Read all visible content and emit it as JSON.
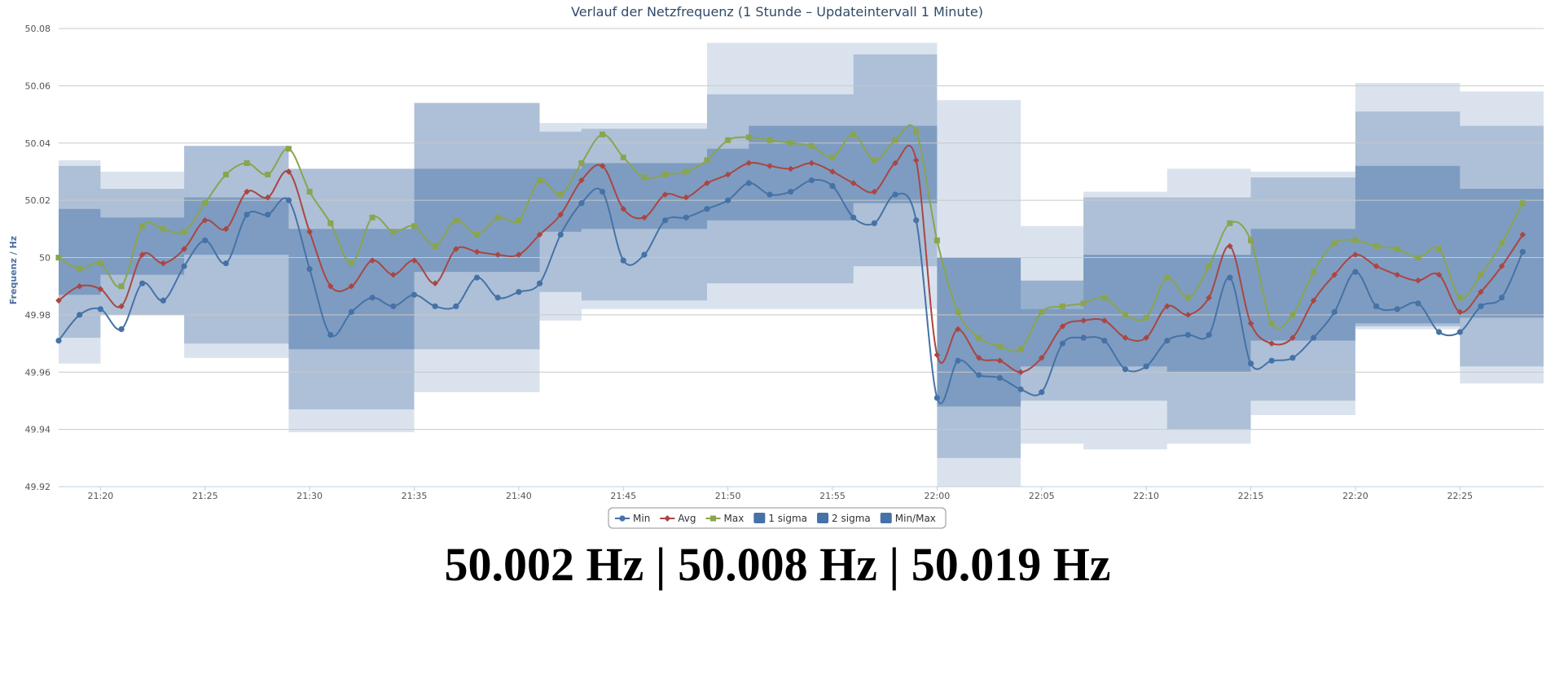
{
  "readout": {
    "text": "50.002 Hz | 50.008 Hz | 50.019 Hz"
  },
  "chart_data": {
    "type": "line",
    "title": "Verlauf der Netzfrequenz (1 Stunde – Updateintervall 1 Minute)",
    "ylabel": "Frequenz / Hz",
    "xlabel": "",
    "ylim": [
      49.92,
      50.08
    ],
    "xlim": [
      "21:18",
      "22:29"
    ],
    "yticks": [
      "50.08",
      "50.06",
      "50.04",
      "50.02",
      "50",
      "49.98",
      "49.96",
      "49.94",
      "49.92"
    ],
    "xticks": [
      "21:20",
      "21:25",
      "21:30",
      "21:35",
      "21:40",
      "21:45",
      "21:50",
      "21:55",
      "22:00",
      "22:05",
      "22:10",
      "22:15",
      "22:20",
      "22:25"
    ],
    "grid": true,
    "legend_position": "bottom-center",
    "x_start": "21:18",
    "x_step_minutes": 1,
    "series": [
      {
        "name": "Min",
        "color": "#4572a7",
        "marker": "circle",
        "values": [
          49.971,
          49.98,
          49.982,
          49.975,
          49.991,
          49.985,
          49.997,
          50.006,
          49.998,
          50.015,
          50.015,
          50.02,
          49.996,
          49.973,
          49.981,
          49.986,
          49.983,
          49.987,
          49.983,
          49.983,
          49.993,
          49.986,
          49.988,
          49.991,
          50.008,
          50.019,
          50.023,
          49.999,
          50.001,
          50.013,
          50.014,
          50.017,
          50.02,
          50.026,
          50.022,
          50.023,
          50.027,
          50.025,
          50.014,
          50.012,
          50.022,
          50.013,
          49.951,
          49.964,
          49.959,
          49.958,
          49.954,
          49.953,
          49.97,
          49.972,
          49.971,
          49.961,
          49.962,
          49.971,
          49.973,
          49.973,
          49.993,
          49.963,
          49.964,
          49.965,
          49.972,
          49.981,
          49.995,
          49.983,
          49.982,
          49.984,
          49.974,
          49.974,
          49.983,
          49.986,
          50.002
        ]
      },
      {
        "name": "Avg",
        "color": "#aa4643",
        "marker": "diamond",
        "values": [
          49.985,
          49.99,
          49.989,
          49.983,
          50.001,
          49.998,
          50.003,
          50.013,
          50.01,
          50.023,
          50.021,
          50.03,
          50.009,
          49.99,
          49.99,
          49.999,
          49.994,
          49.999,
          49.991,
          50.003,
          50.002,
          50.001,
          50.001,
          50.008,
          50.015,
          50.027,
          50.032,
          50.017,
          50.014,
          50.022,
          50.021,
          50.026,
          50.029,
          50.033,
          50.032,
          50.031,
          50.033,
          50.03,
          50.026,
          50.023,
          50.033,
          50.034,
          49.966,
          49.975,
          49.965,
          49.964,
          49.96,
          49.965,
          49.976,
          49.978,
          49.978,
          49.972,
          49.972,
          49.983,
          49.98,
          49.986,
          50.004,
          49.977,
          49.97,
          49.972,
          49.985,
          49.994,
          50.001,
          49.997,
          49.994,
          49.992,
          49.994,
          49.981,
          49.988,
          49.997,
          50.008
        ]
      },
      {
        "name": "Max",
        "color": "#89a54e",
        "marker": "square",
        "values": [
          50.0,
          49.996,
          49.998,
          49.99,
          50.011,
          50.01,
          50.009,
          50.019,
          50.029,
          50.033,
          50.029,
          50.038,
          50.023,
          50.012,
          49.998,
          50.014,
          50.009,
          50.011,
          50.004,
          50.013,
          50.008,
          50.014,
          50.013,
          50.027,
          50.022,
          50.033,
          50.043,
          50.035,
          50.028,
          50.029,
          50.03,
          50.034,
          50.041,
          50.042,
          50.041,
          50.04,
          50.039,
          50.035,
          50.043,
          50.034,
          50.041,
          50.044,
          50.006,
          49.981,
          49.972,
          49.969,
          49.968,
          49.981,
          49.983,
          49.984,
          49.986,
          49.98,
          49.979,
          49.993,
          49.986,
          49.997,
          50.012,
          50.006,
          49.977,
          49.98,
          49.995,
          50.005,
          50.006,
          50.004,
          50.003,
          50.0,
          50.003,
          49.986,
          49.994,
          50.005,
          50.019
        ]
      },
      {
        "name": "1 sigma",
        "color": "#4572a7",
        "type": "band",
        "segments": [
          {
            "from": "21:18",
            "to": "21:20",
            "low": 49.987,
            "high": 50.017
          },
          {
            "from": "21:20",
            "to": "21:24",
            "low": 49.994,
            "high": 50.014
          },
          {
            "from": "21:24",
            "to": "21:29",
            "low": 50.001,
            "high": 50.021
          },
          {
            "from": "21:29",
            "to": "21:35",
            "low": 49.968,
            "high": 50.01
          },
          {
            "from": "21:35",
            "to": "21:41",
            "low": 49.995,
            "high": 50.031
          },
          {
            "from": "21:41",
            "to": "21:43",
            "low": 50.009,
            "high": 50.031
          },
          {
            "from": "21:43",
            "to": "21:49",
            "low": 50.01,
            "high": 50.033
          },
          {
            "from": "21:49",
            "to": "21:51",
            "low": 50.013,
            "high": 50.038
          },
          {
            "from": "21:51",
            "to": "21:56",
            "low": 50.013,
            "high": 50.046
          },
          {
            "from": "21:56",
            "to": "22:00",
            "low": 50.019,
            "high": 50.046
          },
          {
            "from": "22:00",
            "to": "22:04",
            "low": 49.948,
            "high": 50.0
          },
          {
            "from": "22:04",
            "to": "22:07",
            "low": 49.962,
            "high": 49.992
          },
          {
            "from": "22:07",
            "to": "22:11",
            "low": 49.962,
            "high": 50.001
          },
          {
            "from": "22:11",
            "to": "22:15",
            "low": 49.96,
            "high": 50.001
          },
          {
            "from": "22:15",
            "to": "22:20",
            "low": 49.971,
            "high": 50.01
          },
          {
            "from": "22:20",
            "to": "22:25",
            "low": 49.977,
            "high": 50.032
          },
          {
            "from": "22:25",
            "to": "22:29",
            "low": 49.979,
            "high": 50.024
          }
        ]
      },
      {
        "name": "2 sigma",
        "color": "#4572a7",
        "type": "band",
        "segments": [
          {
            "from": "21:18",
            "to": "21:20",
            "low": 49.972,
            "high": 50.032
          },
          {
            "from": "21:20",
            "to": "21:24",
            "low": 49.98,
            "high": 50.024
          },
          {
            "from": "21:24",
            "to": "21:29",
            "low": 49.97,
            "high": 50.039
          },
          {
            "from": "21:29",
            "to": "21:35",
            "low": 49.947,
            "high": 50.031
          },
          {
            "from": "21:35",
            "to": "21:41",
            "low": 49.968,
            "high": 50.054
          },
          {
            "from": "21:41",
            "to": "21:43",
            "low": 49.988,
            "high": 50.044
          },
          {
            "from": "21:43",
            "to": "21:49",
            "low": 49.985,
            "high": 50.045
          },
          {
            "from": "21:49",
            "to": "21:51",
            "low": 49.991,
            "high": 50.057
          },
          {
            "from": "21:51",
            "to": "21:56",
            "low": 49.991,
            "high": 50.057
          },
          {
            "from": "21:56",
            "to": "22:00",
            "low": 49.997,
            "high": 50.071
          },
          {
            "from": "22:00",
            "to": "22:04",
            "low": 49.93,
            "high": 50.0
          },
          {
            "from": "22:04",
            "to": "22:07",
            "low": 49.95,
            "high": 49.982
          },
          {
            "from": "22:07",
            "to": "22:11",
            "low": 49.95,
            "high": 50.021
          },
          {
            "from": "22:11",
            "to": "22:15",
            "low": 49.94,
            "high": 50.021
          },
          {
            "from": "22:15",
            "to": "22:20",
            "low": 49.95,
            "high": 50.028
          },
          {
            "from": "22:20",
            "to": "22:25",
            "low": 49.976,
            "high": 50.051
          },
          {
            "from": "22:25",
            "to": "22:29",
            "low": 49.962,
            "high": 50.046
          }
        ]
      },
      {
        "name": "Min/Max",
        "color": "#4572a7",
        "type": "band",
        "segments": [
          {
            "from": "21:18",
            "to": "21:20",
            "low": 49.963,
            "high": 50.034
          },
          {
            "from": "21:20",
            "to": "21:24",
            "low": 49.98,
            "high": 50.03
          },
          {
            "from": "21:24",
            "to": "21:29",
            "low": 49.965,
            "high": 50.039
          },
          {
            "from": "21:29",
            "to": "21:35",
            "low": 49.939,
            "high": 50.031
          },
          {
            "from": "21:35",
            "to": "21:41",
            "low": 49.953,
            "high": 50.054
          },
          {
            "from": "21:41",
            "to": "21:43",
            "low": 49.978,
            "high": 50.047
          },
          {
            "from": "21:43",
            "to": "21:49",
            "low": 49.982,
            "high": 50.047
          },
          {
            "from": "21:49",
            "to": "21:51",
            "low": 49.982,
            "high": 50.075
          },
          {
            "from": "21:51",
            "to": "21:56",
            "low": 49.982,
            "high": 50.075
          },
          {
            "from": "21:56",
            "to": "22:00",
            "low": 49.982,
            "high": 50.075
          },
          {
            "from": "22:00",
            "to": "22:04",
            "low": 49.92,
            "high": 50.055
          },
          {
            "from": "22:04",
            "to": "22:07",
            "low": 49.935,
            "high": 50.011
          },
          {
            "from": "22:07",
            "to": "22:11",
            "low": 49.933,
            "high": 50.023
          },
          {
            "from": "22:11",
            "to": "22:15",
            "low": 49.935,
            "high": 50.031
          },
          {
            "from": "22:15",
            "to": "22:20",
            "low": 49.945,
            "high": 50.03
          },
          {
            "from": "22:20",
            "to": "22:25",
            "low": 49.975,
            "high": 50.061
          },
          {
            "from": "22:25",
            "to": "22:29",
            "low": 49.956,
            "high": 50.058
          }
        ]
      }
    ]
  }
}
